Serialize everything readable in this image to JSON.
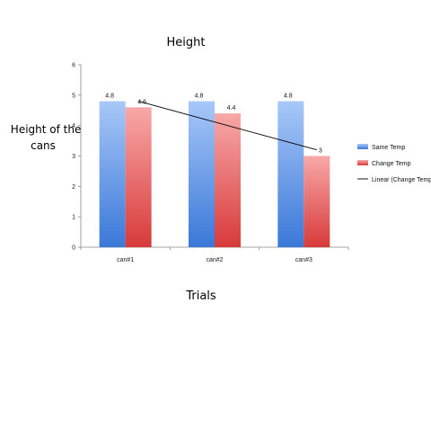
{
  "chart_data": {
    "type": "bar",
    "title": "Height",
    "ylabel": "Height of the cans",
    "xlabel": "Trials",
    "categories": [
      "can#1",
      "can#2",
      "can#3"
    ],
    "ylim": [
      0,
      6
    ],
    "yticks": [
      "0",
      "1",
      "2",
      "3",
      "4",
      "5",
      "6"
    ],
    "series": [
      {
        "name": "Same Temp",
        "values": [
          4.8,
          4.8,
          4.8
        ],
        "color_top": "#a8c8f8",
        "color_bottom": "#3a78d8"
      },
      {
        "name": "Change Temp",
        "values": [
          4.6,
          4.4,
          3
        ],
        "color_top": "#f8a8a8",
        "color_bottom": "#d83a3a"
      }
    ],
    "data_labels": [
      [
        "4.8",
        "4.8",
        "4.8"
      ],
      [
        "4.6",
        "4.4",
        "3"
      ]
    ],
    "trendline": {
      "name": "Linear (Change Temp)",
      "series": "Change Temp",
      "color": "#000000"
    },
    "grid": false,
    "legend_position": "right"
  }
}
